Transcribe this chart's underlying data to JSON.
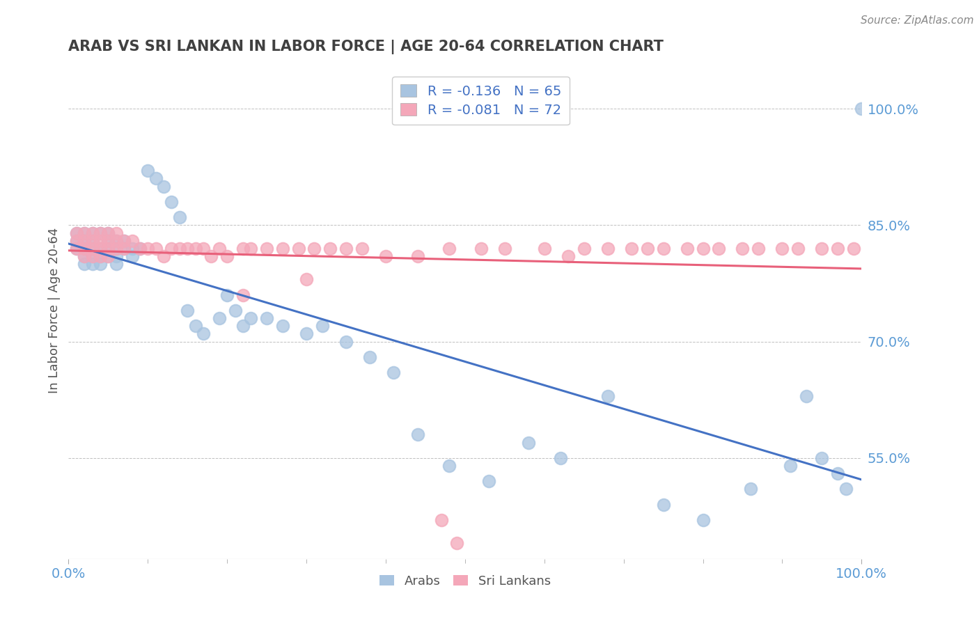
{
  "title": "ARAB VS SRI LANKAN IN LABOR FORCE | AGE 20-64 CORRELATION CHART",
  "source": "Source: ZipAtlas.com",
  "ylabel": "In Labor Force | Age 20-64",
  "xlim": [
    0.0,
    1.0
  ],
  "ylim": [
    0.42,
    1.06
  ],
  "yticks": [
    0.55,
    0.7,
    0.85,
    1.0
  ],
  "ytick_labels": [
    "55.0%",
    "70.0%",
    "85.0%",
    "100.0%"
  ],
  "xticks": [
    0.0,
    1.0
  ],
  "xtick_labels": [
    "0.0%",
    "100.0%"
  ],
  "arab_R": -0.136,
  "arab_N": 65,
  "srilankan_R": -0.081,
  "srilankan_N": 72,
  "arab_color": "#a8c4e0",
  "srilankan_color": "#f4a7b9",
  "arab_line_color": "#4472c4",
  "srilankan_line_color": "#e8607a",
  "legend_label_arab": "Arabs",
  "legend_label_srilankan": "Sri Lankans",
  "title_color": "#404040",
  "axis_label_color": "#555555",
  "tick_color": "#5b9bd5",
  "grid_color": "#b0b0b0",
  "background_color": "#ffffff",
  "arab_x": [
    0.01,
    0.01,
    0.01,
    0.02,
    0.02,
    0.02,
    0.02,
    0.02,
    0.03,
    0.03,
    0.03,
    0.03,
    0.03,
    0.04,
    0.04,
    0.04,
    0.04,
    0.05,
    0.05,
    0.05,
    0.05,
    0.06,
    0.06,
    0.06,
    0.06,
    0.07,
    0.07,
    0.08,
    0.08,
    0.09,
    0.1,
    0.11,
    0.12,
    0.13,
    0.14,
    0.15,
    0.16,
    0.17,
    0.19,
    0.2,
    0.21,
    0.22,
    0.23,
    0.25,
    0.27,
    0.3,
    0.32,
    0.35,
    0.38,
    0.41,
    0.44,
    0.48,
    0.53,
    0.58,
    0.62,
    0.68,
    0.75,
    0.8,
    0.86,
    0.91,
    0.93,
    0.95,
    0.97,
    0.98,
    1.0
  ],
  "arab_y": [
    0.84,
    0.83,
    0.82,
    0.84,
    0.83,
    0.82,
    0.81,
    0.8,
    0.84,
    0.83,
    0.82,
    0.81,
    0.8,
    0.84,
    0.82,
    0.81,
    0.8,
    0.84,
    0.83,
    0.82,
    0.81,
    0.83,
    0.82,
    0.81,
    0.8,
    0.83,
    0.82,
    0.82,
    0.81,
    0.82,
    0.92,
    0.91,
    0.9,
    0.88,
    0.86,
    0.74,
    0.72,
    0.71,
    0.73,
    0.76,
    0.74,
    0.72,
    0.73,
    0.73,
    0.72,
    0.71,
    0.72,
    0.7,
    0.68,
    0.66,
    0.58,
    0.54,
    0.52,
    0.57,
    0.55,
    0.63,
    0.49,
    0.47,
    0.51,
    0.54,
    0.63,
    0.55,
    0.53,
    0.51,
    1.0
  ],
  "srilankan_x": [
    0.01,
    0.01,
    0.01,
    0.02,
    0.02,
    0.02,
    0.02,
    0.03,
    0.03,
    0.03,
    0.03,
    0.04,
    0.04,
    0.04,
    0.04,
    0.05,
    0.05,
    0.05,
    0.05,
    0.06,
    0.06,
    0.06,
    0.07,
    0.07,
    0.08,
    0.09,
    0.1,
    0.11,
    0.12,
    0.13,
    0.14,
    0.15,
    0.16,
    0.17,
    0.18,
    0.19,
    0.2,
    0.22,
    0.23,
    0.25,
    0.27,
    0.29,
    0.31,
    0.33,
    0.35,
    0.37,
    0.4,
    0.44,
    0.48,
    0.52,
    0.55,
    0.6,
    0.63,
    0.65,
    0.68,
    0.71,
    0.73,
    0.75,
    0.78,
    0.8,
    0.82,
    0.85,
    0.87,
    0.9,
    0.92,
    0.95,
    0.97,
    0.99,
    0.22,
    0.3,
    0.47,
    0.49
  ],
  "srilankan_y": [
    0.84,
    0.83,
    0.82,
    0.84,
    0.83,
    0.82,
    0.81,
    0.84,
    0.83,
    0.82,
    0.81,
    0.84,
    0.83,
    0.82,
    0.81,
    0.84,
    0.83,
    0.82,
    0.81,
    0.84,
    0.83,
    0.82,
    0.83,
    0.82,
    0.83,
    0.82,
    0.82,
    0.82,
    0.81,
    0.82,
    0.82,
    0.82,
    0.82,
    0.82,
    0.81,
    0.82,
    0.81,
    0.82,
    0.82,
    0.82,
    0.82,
    0.82,
    0.82,
    0.82,
    0.82,
    0.82,
    0.81,
    0.81,
    0.82,
    0.82,
    0.82,
    0.82,
    0.81,
    0.82,
    0.82,
    0.82,
    0.82,
    0.82,
    0.82,
    0.82,
    0.82,
    0.82,
    0.82,
    0.82,
    0.82,
    0.82,
    0.82,
    0.82,
    0.76,
    0.78,
    0.47,
    0.44
  ]
}
